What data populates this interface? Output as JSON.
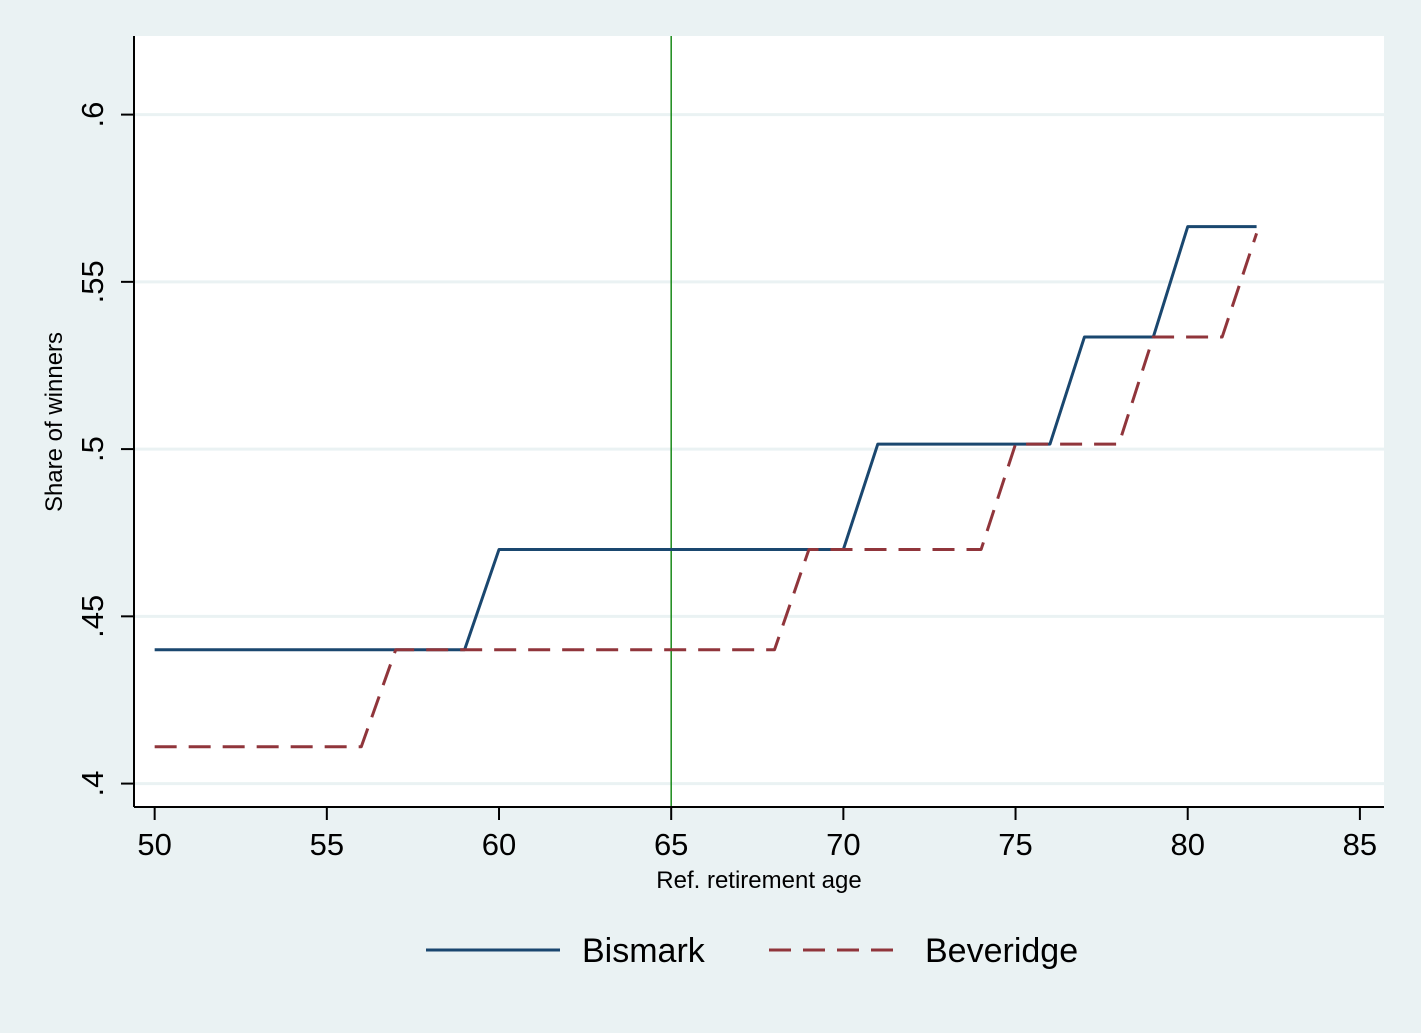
{
  "chart_data": {
    "type": "line",
    "xlabel": "Ref. retirement age",
    "ylabel": "Share of winners",
    "xlim": [
      49.4,
      85.7
    ],
    "ylim": [
      0.393,
      0.6235
    ],
    "x_ticks": [
      50,
      55,
      60,
      65,
      70,
      75,
      80,
      85
    ],
    "x_tick_labels": [
      "50",
      "55",
      "60",
      "65",
      "70",
      "75",
      "80",
      "85"
    ],
    "y_ticks": [
      0.4,
      0.45,
      0.5,
      0.55,
      0.6
    ],
    "y_tick_labels": [
      ".4",
      ".45",
      ".5",
      ".55",
      ".6"
    ],
    "grid": true,
    "legend_position": "bottom",
    "reference_line": {
      "x": 65,
      "color": "#1a8a1a"
    },
    "series": [
      {
        "name": "Bismark",
        "color": "#1a476f",
        "style": "solid",
        "x": [
          50,
          59,
          60,
          70,
          71,
          76,
          77,
          79,
          80,
          82
        ],
        "y": [
          0.44,
          0.44,
          0.47,
          0.47,
          0.5015,
          0.5015,
          0.5335,
          0.5335,
          0.5665,
          0.5665
        ]
      },
      {
        "name": "Beveridge",
        "color": "#90353b",
        "style": "dashed",
        "x": [
          50,
          56,
          57,
          68,
          69,
          74,
          75,
          78,
          79,
          81,
          82
        ],
        "y": [
          0.411,
          0.411,
          0.44,
          0.44,
          0.47,
          0.47,
          0.5015,
          0.5015,
          0.5335,
          0.5335,
          0.5645
        ]
      }
    ]
  }
}
